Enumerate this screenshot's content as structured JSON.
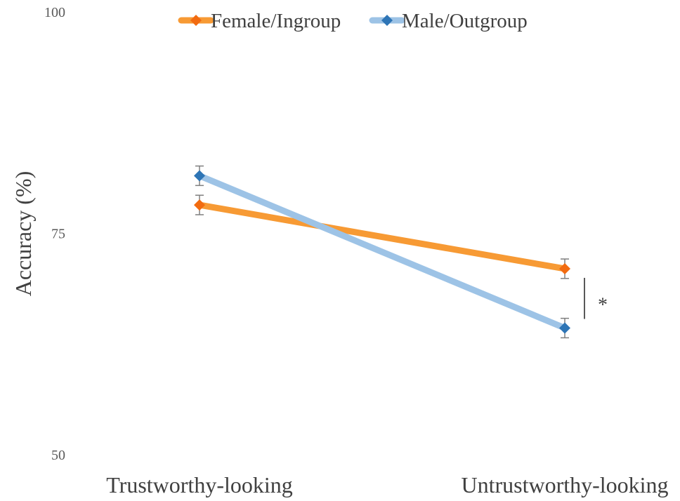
{
  "chart_data": {
    "type": "line",
    "ylabel": "Accuracy (%)",
    "ylim": [
      50,
      100
    ],
    "yticks": [
      50,
      75,
      100
    ],
    "categories": [
      "Trustworthy-looking",
      "Untrustworthy-looking"
    ],
    "legend_position": "top",
    "grid": false,
    "series": [
      {
        "name": "Female/Ingroup",
        "values": [
          78.2,
          71.0
        ],
        "errors": [
          1.1,
          1.1
        ],
        "line_color": "#F79A34",
        "marker_color": "#F26B10"
      },
      {
        "name": "Male/Outgroup",
        "values": [
          81.5,
          64.3
        ],
        "errors": [
          1.1,
          1.1
        ],
        "line_color": "#9DC3E6",
        "marker_color": "#2E75B6"
      }
    ],
    "annotations": [
      {
        "text": "*",
        "category": "Untrustworthy-looking",
        "between_series": [
          "Female/Ingroup",
          "Male/Outgroup"
        ]
      }
    ]
  }
}
